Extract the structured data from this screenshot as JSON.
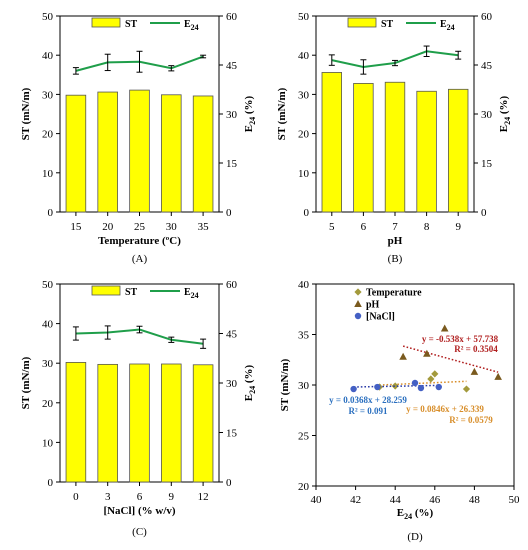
{
  "chart_data": [
    {
      "type": "bar",
      "panel_label": "(A)",
      "categories": [
        "15",
        "20",
        "25",
        "30",
        "35"
      ],
      "xlabel": "Temperature (ºC)",
      "ylabel": "ST (mN/m)",
      "y2label": "E24 (%)",
      "ylim": [
        0,
        50
      ],
      "y2lim": [
        0,
        60
      ],
      "yticks": [
        "0",
        "10",
        "20",
        "30",
        "40",
        "50"
      ],
      "y2ticks": [
        "0",
        "15",
        "30",
        "45",
        "60"
      ],
      "legend": {
        "bar": "ST",
        "line": "E24"
      },
      "series": [
        {
          "name": "ST",
          "type": "bar",
          "axis": "left",
          "values": [
            29.8,
            30.6,
            31.1,
            29.9,
            29.6
          ]
        },
        {
          "name": "E24",
          "type": "line",
          "axis": "right",
          "values": [
            43.2,
            45.8,
            46.0,
            44.0,
            47.6
          ],
          "errors": [
            1.0,
            2.5,
            3.2,
            0.8,
            0.4
          ]
        }
      ]
    },
    {
      "type": "bar",
      "panel_label": "(B)",
      "categories": [
        "5",
        "6",
        "7",
        "8",
        "9"
      ],
      "xlabel": "pH",
      "ylabel": "ST (mN/m)",
      "y2label": "E24 (%)",
      "ylim": [
        0,
        50
      ],
      "y2lim": [
        0,
        60
      ],
      "yticks": [
        "0",
        "10",
        "20",
        "30",
        "40",
        "50"
      ],
      "y2ticks": [
        "0",
        "15",
        "30",
        "45",
        "60"
      ],
      "legend": {
        "bar": "ST",
        "line": "E24"
      },
      "series": [
        {
          "name": "ST",
          "type": "bar",
          "axis": "left",
          "values": [
            35.6,
            32.8,
            33.1,
            30.8,
            31.3
          ]
        },
        {
          "name": "E24",
          "type": "line",
          "axis": "right",
          "values": [
            46.5,
            44.4,
            45.6,
            49.2,
            48.0
          ],
          "errors": [
            1.6,
            2.2,
            0.8,
            1.6,
            1.2
          ]
        }
      ]
    },
    {
      "type": "bar",
      "panel_label": "(C)",
      "categories": [
        "0",
        "3",
        "6",
        "9",
        "12"
      ],
      "xlabel": "[NaCl] (% w/v)",
      "ylabel": "ST (mN/m)",
      "y2label": "E24 (%)",
      "ylim": [
        0,
        50
      ],
      "y2lim": [
        0,
        60
      ],
      "yticks": [
        "0",
        "10",
        "20",
        "30",
        "40",
        "50"
      ],
      "y2ticks": [
        "0",
        "15",
        "30",
        "45",
        "60"
      ],
      "legend": {
        "bar": "ST",
        "line": "E24"
      },
      "series": [
        {
          "name": "ST",
          "type": "bar",
          "axis": "left",
          "values": [
            30.2,
            29.7,
            29.8,
            29.8,
            29.6
          ]
        },
        {
          "name": "E24",
          "type": "line",
          "axis": "right",
          "values": [
            45.0,
            45.3,
            46.2,
            43.1,
            41.9
          ],
          "errors": [
            2.0,
            2.0,
            1.0,
            0.8,
            1.4
          ]
        }
      ]
    },
    {
      "type": "scatter",
      "panel_label": "(D)",
      "xlabel": "E24 (%)",
      "ylabel": "ST (mN/m)",
      "xlim": [
        40,
        50
      ],
      "ylim": [
        20,
        40
      ],
      "xticks": [
        "40",
        "42",
        "44",
        "46",
        "48",
        "50"
      ],
      "yticks": [
        "20",
        "25",
        "30",
        "35",
        "40"
      ],
      "series": [
        {
          "name": "Temperature",
          "marker": "diamond",
          "color": "#a39a3c",
          "trend_color": "#d88e2a",
          "x": [
            43.2,
            45.8,
            46.0,
            44.0,
            47.6
          ],
          "y": [
            29.8,
            30.6,
            31.1,
            29.9,
            29.6
          ],
          "equation": "y = 0.0846x + 26.339",
          "r2": "R² = 0.0579"
        },
        {
          "name": "pH",
          "marker": "triangle",
          "color": "#7a5a1e",
          "trend_color": "#b01e1e",
          "x": [
            46.5,
            44.4,
            45.6,
            49.2,
            48.0
          ],
          "y": [
            35.6,
            32.8,
            33.1,
            30.8,
            31.3
          ],
          "equation": "y = -0.538x + 57.738",
          "r2": "R² = 0.3504"
        },
        {
          "name": "[NaCl]",
          "marker": "circle",
          "color": "#4460c4",
          "trend_color": "#2a3aa6",
          "x": [
            45.0,
            45.3,
            46.2,
            43.1,
            41.9
          ],
          "y": [
            30.2,
            29.7,
            29.8,
            29.8,
            29.6
          ],
          "equation": "y = 0.0368x + 28.259",
          "r2": "R² = 0.091"
        }
      ]
    }
  ],
  "colors": {
    "bar_fill": "#ffff00",
    "bar_stroke": "#555555",
    "line": "#1f9e4a",
    "r2_temperature": "#d88e2a",
    "r2_ph": "#b01e1e",
    "r2_nacl": "#2a6fbf"
  }
}
